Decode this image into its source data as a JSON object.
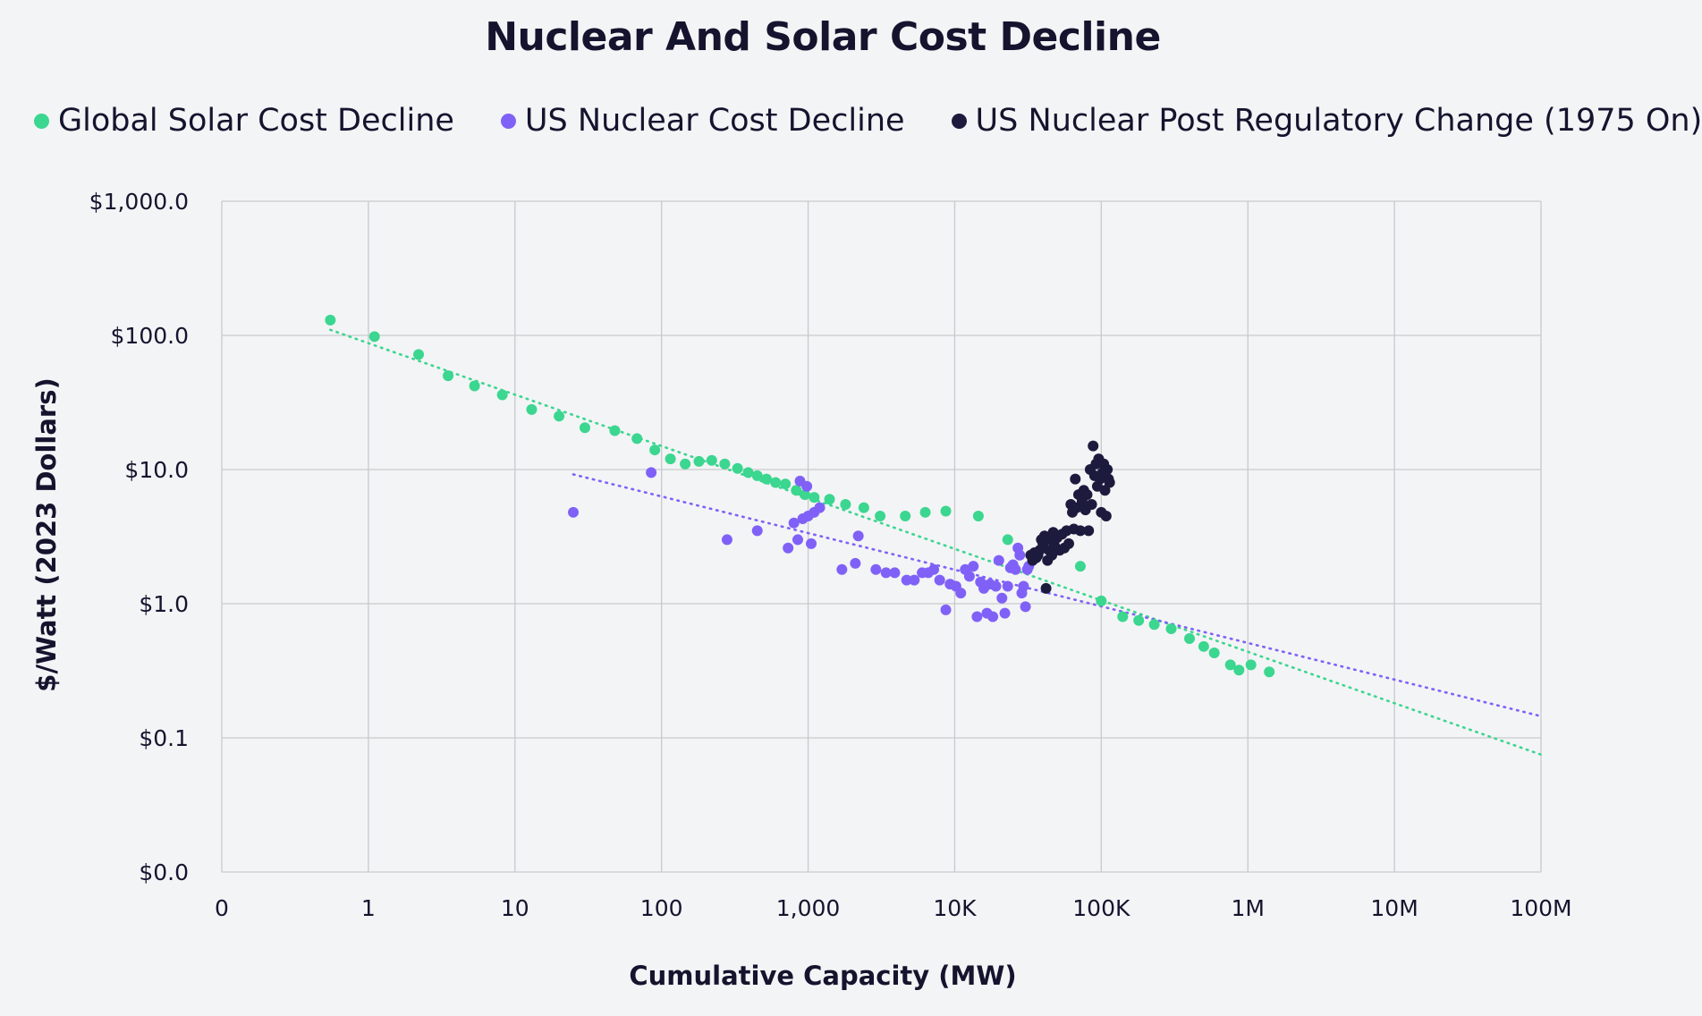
{
  "chart_data": {
    "type": "scatter",
    "title": "Nuclear And Solar Cost Decline",
    "xlabel": "Cumulative Capacity (MW)",
    "ylabel": "$/Watt (2023 Dollars)",
    "x_scale": "log",
    "y_scale": "log",
    "xlim": [
      0.1,
      100000000
    ],
    "ylim": [
      0.01,
      1000
    ],
    "x_ticks": [
      {
        "value": 0.1,
        "label": "0"
      },
      {
        "value": 1,
        "label": "1"
      },
      {
        "value": 10,
        "label": "10"
      },
      {
        "value": 100,
        "label": "100"
      },
      {
        "value": 1000,
        "label": "1,000"
      },
      {
        "value": 10000,
        "label": "10K"
      },
      {
        "value": 100000,
        "label": "100K"
      },
      {
        "value": 1000000,
        "label": "1M"
      },
      {
        "value": 10000000,
        "label": "10M"
      },
      {
        "value": 100000000,
        "label": "100M"
      }
    ],
    "y_ticks": [
      {
        "value": 0.01,
        "label": "$0.0"
      },
      {
        "value": 0.1,
        "label": "$0.1"
      },
      {
        "value": 1,
        "label": "$1.0"
      },
      {
        "value": 10,
        "label": "$10.0"
      },
      {
        "value": 100,
        "label": "$100.0"
      },
      {
        "value": 1000,
        "label": "$1,000.0"
      }
    ],
    "grid": true,
    "legend_position": "top",
    "series": [
      {
        "name": "Global Solar Cost Decline",
        "color": "#3bd68f",
        "trendline": {
          "x": [
            0.55,
            100000000
          ],
          "y": [
            110,
            0.075
          ],
          "style": "dotted"
        },
        "points": [
          [
            0.55,
            130
          ],
          [
            1.1,
            98
          ],
          [
            2.2,
            72
          ],
          [
            3.5,
            50
          ],
          [
            5.3,
            42
          ],
          [
            8.2,
            36
          ],
          [
            13,
            28
          ],
          [
            20,
            25
          ],
          [
            30,
            20.5
          ],
          [
            48,
            19.5
          ],
          [
            68,
            17
          ],
          [
            90,
            14
          ],
          [
            115,
            12
          ],
          [
            145,
            11
          ],
          [
            180,
            11.5
          ],
          [
            220,
            11.7
          ],
          [
            270,
            11
          ],
          [
            330,
            10.2
          ],
          [
            390,
            9.5
          ],
          [
            450,
            9
          ],
          [
            520,
            8.5
          ],
          [
            600,
            8
          ],
          [
            700,
            7.8
          ],
          [
            830,
            7
          ],
          [
            950,
            6.5
          ],
          [
            1100,
            6.2
          ],
          [
            1400,
            6
          ],
          [
            1800,
            5.5
          ],
          [
            2400,
            5.2
          ],
          [
            3100,
            4.5
          ],
          [
            4600,
            4.5
          ],
          [
            6300,
            4.8
          ],
          [
            8700,
            4.9
          ],
          [
            14500,
            4.5
          ],
          [
            23000,
            3
          ],
          [
            72000,
            1.9
          ],
          [
            100000,
            1.05
          ],
          [
            140000,
            0.8
          ],
          [
            180000,
            0.75
          ],
          [
            230000,
            0.7
          ],
          [
            300000,
            0.65
          ],
          [
            400000,
            0.55
          ],
          [
            500000,
            0.48
          ],
          [
            590000,
            0.43
          ],
          [
            760000,
            0.35
          ],
          [
            870000,
            0.32
          ],
          [
            1050000,
            0.35
          ],
          [
            1400000,
            0.31
          ]
        ]
      },
      {
        "name": "US Nuclear Cost Decline",
        "color": "#8061f7",
        "trendline": {
          "x": [
            25,
            100000000
          ],
          "y": [
            9.2,
            0.145
          ],
          "style": "dotted"
        },
        "points": [
          [
            25,
            4.8
          ],
          [
            85,
            9.5
          ],
          [
            280,
            3
          ],
          [
            450,
            3.5
          ],
          [
            730,
            2.6
          ],
          [
            800,
            4
          ],
          [
            850,
            3
          ],
          [
            880,
            8.2
          ],
          [
            920,
            4.3
          ],
          [
            980,
            7.5
          ],
          [
            1000,
            4.5
          ],
          [
            1050,
            2.8
          ],
          [
            1100,
            4.8
          ],
          [
            1200,
            5.2
          ],
          [
            1700,
            1.8
          ],
          [
            2100,
            2
          ],
          [
            2200,
            3.2
          ],
          [
            2900,
            1.8
          ],
          [
            3400,
            1.7
          ],
          [
            3900,
            1.7
          ],
          [
            4700,
            1.5
          ],
          [
            5300,
            1.5
          ],
          [
            6000,
            1.7
          ],
          [
            6600,
            1.7
          ],
          [
            7200,
            1.8
          ],
          [
            7900,
            1.5
          ],
          [
            8700,
            0.9
          ],
          [
            9300,
            1.4
          ],
          [
            10200,
            1.35
          ],
          [
            11000,
            1.2
          ],
          [
            11800,
            1.8
          ],
          [
            12600,
            1.6
          ],
          [
            13400,
            1.9
          ],
          [
            14200,
            0.8
          ],
          [
            15000,
            1.45
          ],
          [
            15800,
            1.3
          ],
          [
            16600,
            0.85
          ],
          [
            17400,
            1.4
          ],
          [
            18200,
            0.8
          ],
          [
            19100,
            1.35
          ],
          [
            20000,
            2.1
          ],
          [
            21000,
            1.1
          ],
          [
            22000,
            0.85
          ],
          [
            23000,
            1.35
          ],
          [
            24000,
            1.85
          ],
          [
            25000,
            1.95
          ],
          [
            26000,
            1.8
          ],
          [
            27000,
            2.6
          ],
          [
            27800,
            2.3
          ],
          [
            28700,
            1.2
          ],
          [
            29500,
            1.35
          ],
          [
            30400,
            0.95
          ],
          [
            31300,
            1.8
          ],
          [
            32000,
            1.9
          ]
        ]
      },
      {
        "name": "US Nuclear Post Regulatory Change (1975 On)",
        "color": "#1c1b3d",
        "points": [
          [
            33000,
            2.3
          ],
          [
            34000,
            2.1
          ],
          [
            35000,
            2.4
          ],
          [
            36000,
            2.2
          ],
          [
            37000,
            2.3
          ],
          [
            38000,
            2.5
          ],
          [
            39000,
            3
          ],
          [
            40000,
            2.8
          ],
          [
            41000,
            3.2
          ],
          [
            42000,
            1.3
          ],
          [
            43000,
            2.1
          ],
          [
            44000,
            2.5
          ],
          [
            45000,
            3
          ],
          [
            46000,
            2.3
          ],
          [
            47000,
            3.4
          ],
          [
            48000,
            2.7
          ],
          [
            50000,
            3.1
          ],
          [
            52000,
            2.5
          ],
          [
            54000,
            3.3
          ],
          [
            56000,
            2.6
          ],
          [
            58000,
            3.5
          ],
          [
            60000,
            2.8
          ],
          [
            62000,
            5.5
          ],
          [
            63500,
            4.8
          ],
          [
            65000,
            3.6
          ],
          [
            66500,
            8.5
          ],
          [
            68000,
            5.2
          ],
          [
            70000,
            6.5
          ],
          [
            72000,
            3.5
          ],
          [
            74000,
            5.8
          ],
          [
            76000,
            7
          ],
          [
            78000,
            5
          ],
          [
            80000,
            6.5
          ],
          [
            82000,
            3.5
          ],
          [
            84000,
            10
          ],
          [
            86000,
            5.5
          ],
          [
            88000,
            15
          ],
          [
            90000,
            9
          ],
          [
            92000,
            11
          ],
          [
            94000,
            7.5
          ],
          [
            96000,
            12
          ],
          [
            98000,
            8.5
          ],
          [
            100000,
            4.8
          ],
          [
            102000,
            9.5
          ],
          [
            104000,
            11
          ],
          [
            106000,
            7
          ],
          [
            108000,
            4.5
          ],
          [
            110000,
            10
          ],
          [
            112000,
            8.5
          ],
          [
            114000,
            8
          ]
        ]
      }
    ]
  }
}
